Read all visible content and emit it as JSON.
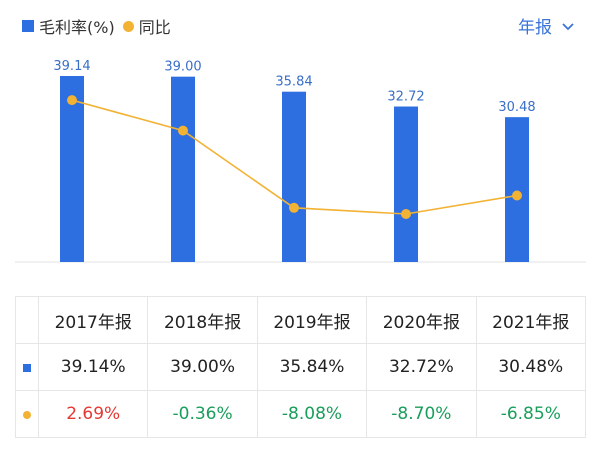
{
  "legend": {
    "bar_label": "毛利率(%)",
    "line_label": "同比"
  },
  "period_selector": {
    "label": "年报"
  },
  "colors": {
    "bar": "#2d6fe0",
    "line": "#f2b233",
    "positive": "#e53935",
    "negative": "#1a9e5b"
  },
  "chart_data": {
    "type": "bar",
    "categories": [
      "2017年报",
      "2018年报",
      "2019年报",
      "2020年报",
      "2021年报"
    ],
    "series": [
      {
        "name": "毛利率(%)",
        "type": "bar",
        "values": [
          39.14,
          39.0,
          35.84,
          32.72,
          30.48
        ]
      },
      {
        "name": "同比",
        "type": "line",
        "values": [
          2.69,
          -0.36,
          -8.08,
          -8.7,
          -6.85
        ]
      }
    ],
    "bar_labels": [
      "39.14",
      "39.00",
      "35.84",
      "32.72",
      "30.48"
    ]
  },
  "table": {
    "headers": [
      "2017年报",
      "2018年报",
      "2019年报",
      "2020年报",
      "2021年报"
    ],
    "margin_row": [
      "39.14%",
      "39.00%",
      "35.84%",
      "32.72%",
      "30.48%"
    ],
    "yoy_row": [
      "2.69%",
      "-0.36%",
      "-8.08%",
      "-8.70%",
      "-6.85%"
    ]
  }
}
